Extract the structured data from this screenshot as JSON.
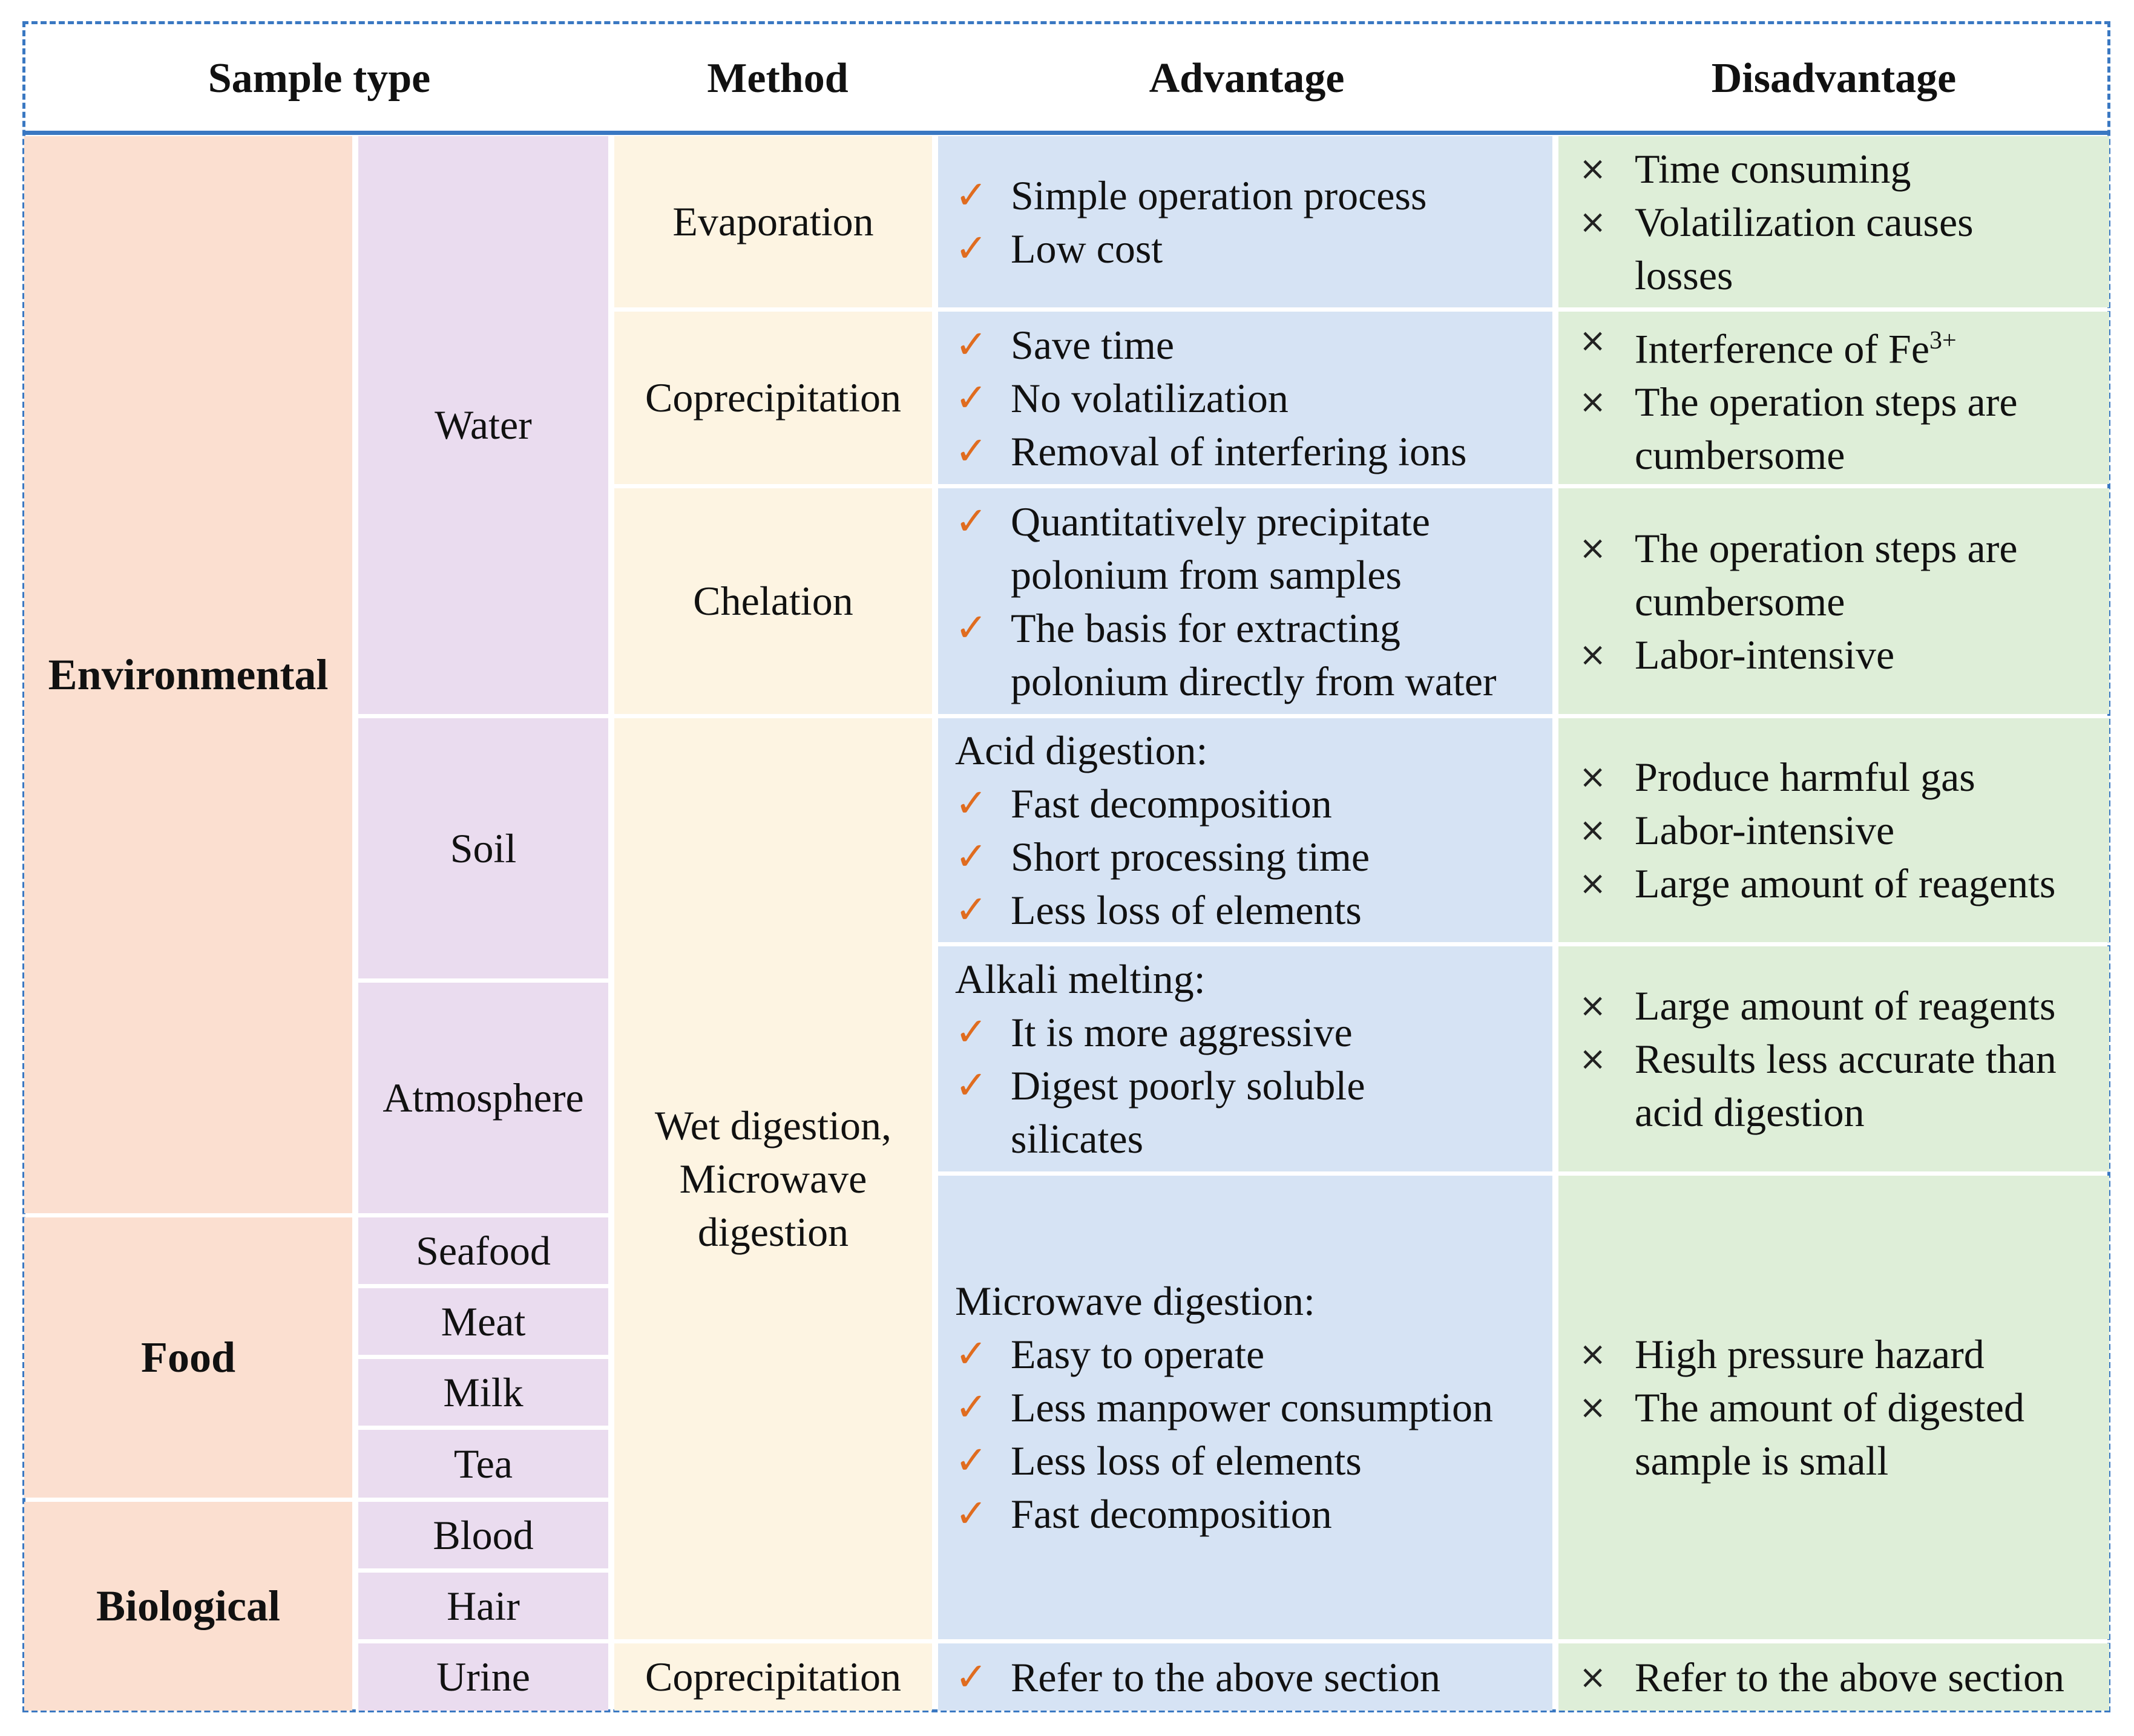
{
  "headers": {
    "sample_type": "Sample type",
    "method": "Method",
    "advantage": "Advantage",
    "disadvantage": "Disadvantage"
  },
  "categories": {
    "environmental": "Environmental",
    "food": "Food",
    "biological": "Biological"
  },
  "samples": {
    "water": "Water",
    "soil": "Soil",
    "atmosphere": "Atmosphere",
    "seafood": "Seafood",
    "meat": "Meat",
    "milk": "Milk",
    "tea": "Tea",
    "blood": "Blood",
    "hair": "Hair",
    "urine": "Urine"
  },
  "methods": {
    "evaporation": "Evaporation",
    "coprecipitation": "Coprecipitation",
    "chelation": "Chelation",
    "wet_digestion": "Wet digestion, Microwave digestion",
    "coprecipitation_urine": "Coprecipitation"
  },
  "advantages": {
    "evaporation": [
      "Simple operation process",
      "Low cost"
    ],
    "coprecipitation": [
      "Save time",
      "No volatilization",
      "Removal of interfering ions"
    ],
    "chelation": [
      "Quantitatively precipitate polonium from samples",
      "The basis for extracting polonium directly from water"
    ],
    "acid": {
      "title": "Acid digestion:",
      "items": [
        "Fast decomposition",
        "Short processing time",
        "Less loss of elements"
      ]
    },
    "alkali": {
      "title": "Alkali melting:",
      "items": [
        "It is more aggressive",
        "Digest poorly soluble silicates"
      ]
    },
    "microwave": {
      "title": "Microwave digestion:",
      "items": [
        "Easy to operate",
        "Less manpower consumption",
        "Less loss of elements",
        "Fast decomposition"
      ]
    },
    "urine": [
      "Refer to the above section"
    ]
  },
  "disadvantages": {
    "evaporation": [
      "Time consuming",
      "Volatilization causes losses"
    ],
    "coprecipitation": {
      "fe_text": "Interference of Fe",
      "fe_sup": "3+",
      "items": [
        "The operation steps are cumbersome"
      ]
    },
    "chelation": [
      "The operation steps are cumbersome",
      "Labor-intensive"
    ],
    "acid": [
      "Produce harmful gas",
      "Labor-intensive",
      "Large amount of reagents"
    ],
    "alkali": [
      "Large amount of reagents",
      "Results less accurate than acid digestion"
    ],
    "microwave": [
      "High pressure hazard",
      "The amount of digested sample is small"
    ],
    "urine": [
      "Refer to the above section"
    ]
  },
  "icons": {
    "check": "✓",
    "cross": "×",
    "check_color": "#e06c1f"
  }
}
